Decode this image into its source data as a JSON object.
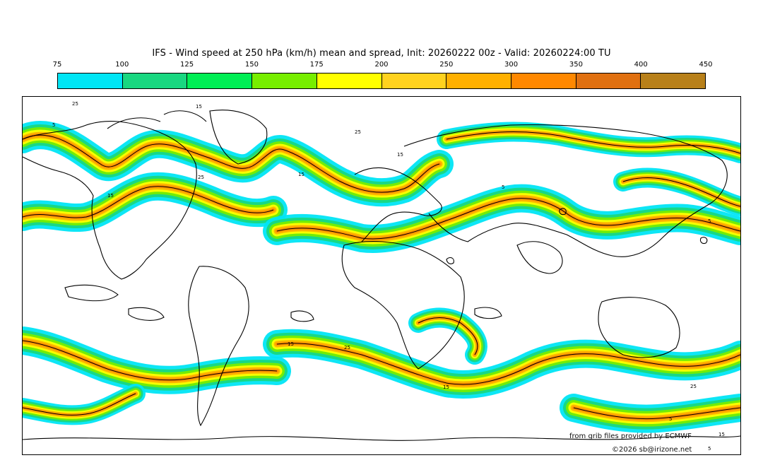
{
  "title": "IFS - Wind speed at 250 hPa (km/h) mean and spread, Init: 20260222 00z - Valid: 20260224:00 TU",
  "colorbar": {
    "ticks": [
      "75",
      "100",
      "125",
      "150",
      "175",
      "200",
      "250",
      "300",
      "350",
      "400",
      "450"
    ],
    "colors": [
      "#00e5f5",
      "#19d780",
      "#00ee55",
      "#77ee00",
      "#ffff00",
      "#ffd21e",
      "#ffb000",
      "#ff8800",
      "#e07010",
      "#b8801a",
      "#a06000"
    ]
  },
  "map": {
    "projection": "equirectangular global",
    "contour_labels": [
      "5",
      "15",
      "25",
      "15",
      "25",
      "15",
      "5",
      "5",
      "25",
      "15",
      "15",
      "25",
      "15",
      "25",
      "5",
      "15",
      "5"
    ]
  },
  "credits": {
    "line1": "from grib files provided by ECMWF",
    "line2": "©2026 sb@irizone.net"
  }
}
